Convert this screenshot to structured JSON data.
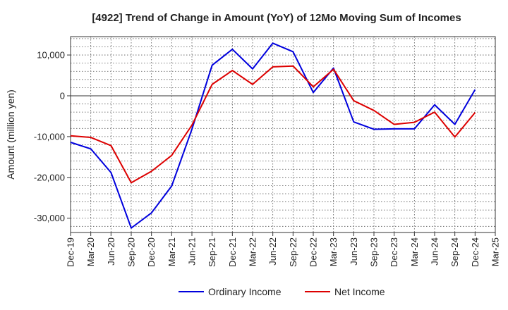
{
  "chart_data": {
    "type": "line",
    "title": "[4922]  Trend of Change in Amount (YoY) of 12Mo Moving Sum of Incomes",
    "ylabel": "Amount (million yen)",
    "xlabel": "",
    "ylim": [
      -33500,
      14500
    ],
    "yticks": [
      10000,
      0,
      -10000,
      -20000,
      -30000
    ],
    "ytick_labels": [
      "10,000",
      "0",
      "-10,000",
      "-20,000",
      "-30,000"
    ],
    "categories": [
      "Dec-19",
      "Mar-20",
      "Jun-20",
      "Sep-20",
      "Dec-20",
      "Mar-21",
      "Jun-21",
      "Sep-21",
      "Dec-21",
      "Mar-22",
      "Jun-22",
      "Sep-22",
      "Dec-22",
      "Mar-23",
      "Jun-23",
      "Sep-23",
      "Dec-23",
      "Mar-24",
      "Jun-24",
      "Sep-24",
      "Dec-24",
      "Mar-25"
    ],
    "grid": true,
    "legend_position": "bottom",
    "series": [
      {
        "name": "Ordinary Income",
        "color": "#0000dd",
        "values": [
          -11400,
          -13000,
          -18800,
          -32400,
          -28700,
          -22100,
          -8200,
          7500,
          11400,
          6600,
          12900,
          10800,
          800,
          6800,
          -6400,
          -8200,
          -8100,
          -8100,
          -2200,
          -7000,
          1500,
          null
        ]
      },
      {
        "name": "Net Income",
        "color": "#dd0000",
        "values": [
          -9800,
          -10200,
          -12200,
          -21300,
          -18500,
          -14600,
          -7200,
          2800,
          6200,
          2800,
          7100,
          7300,
          2200,
          6500,
          -1200,
          -3600,
          -7000,
          -6500,
          -4000,
          -10100,
          -4100,
          null
        ]
      }
    ]
  }
}
